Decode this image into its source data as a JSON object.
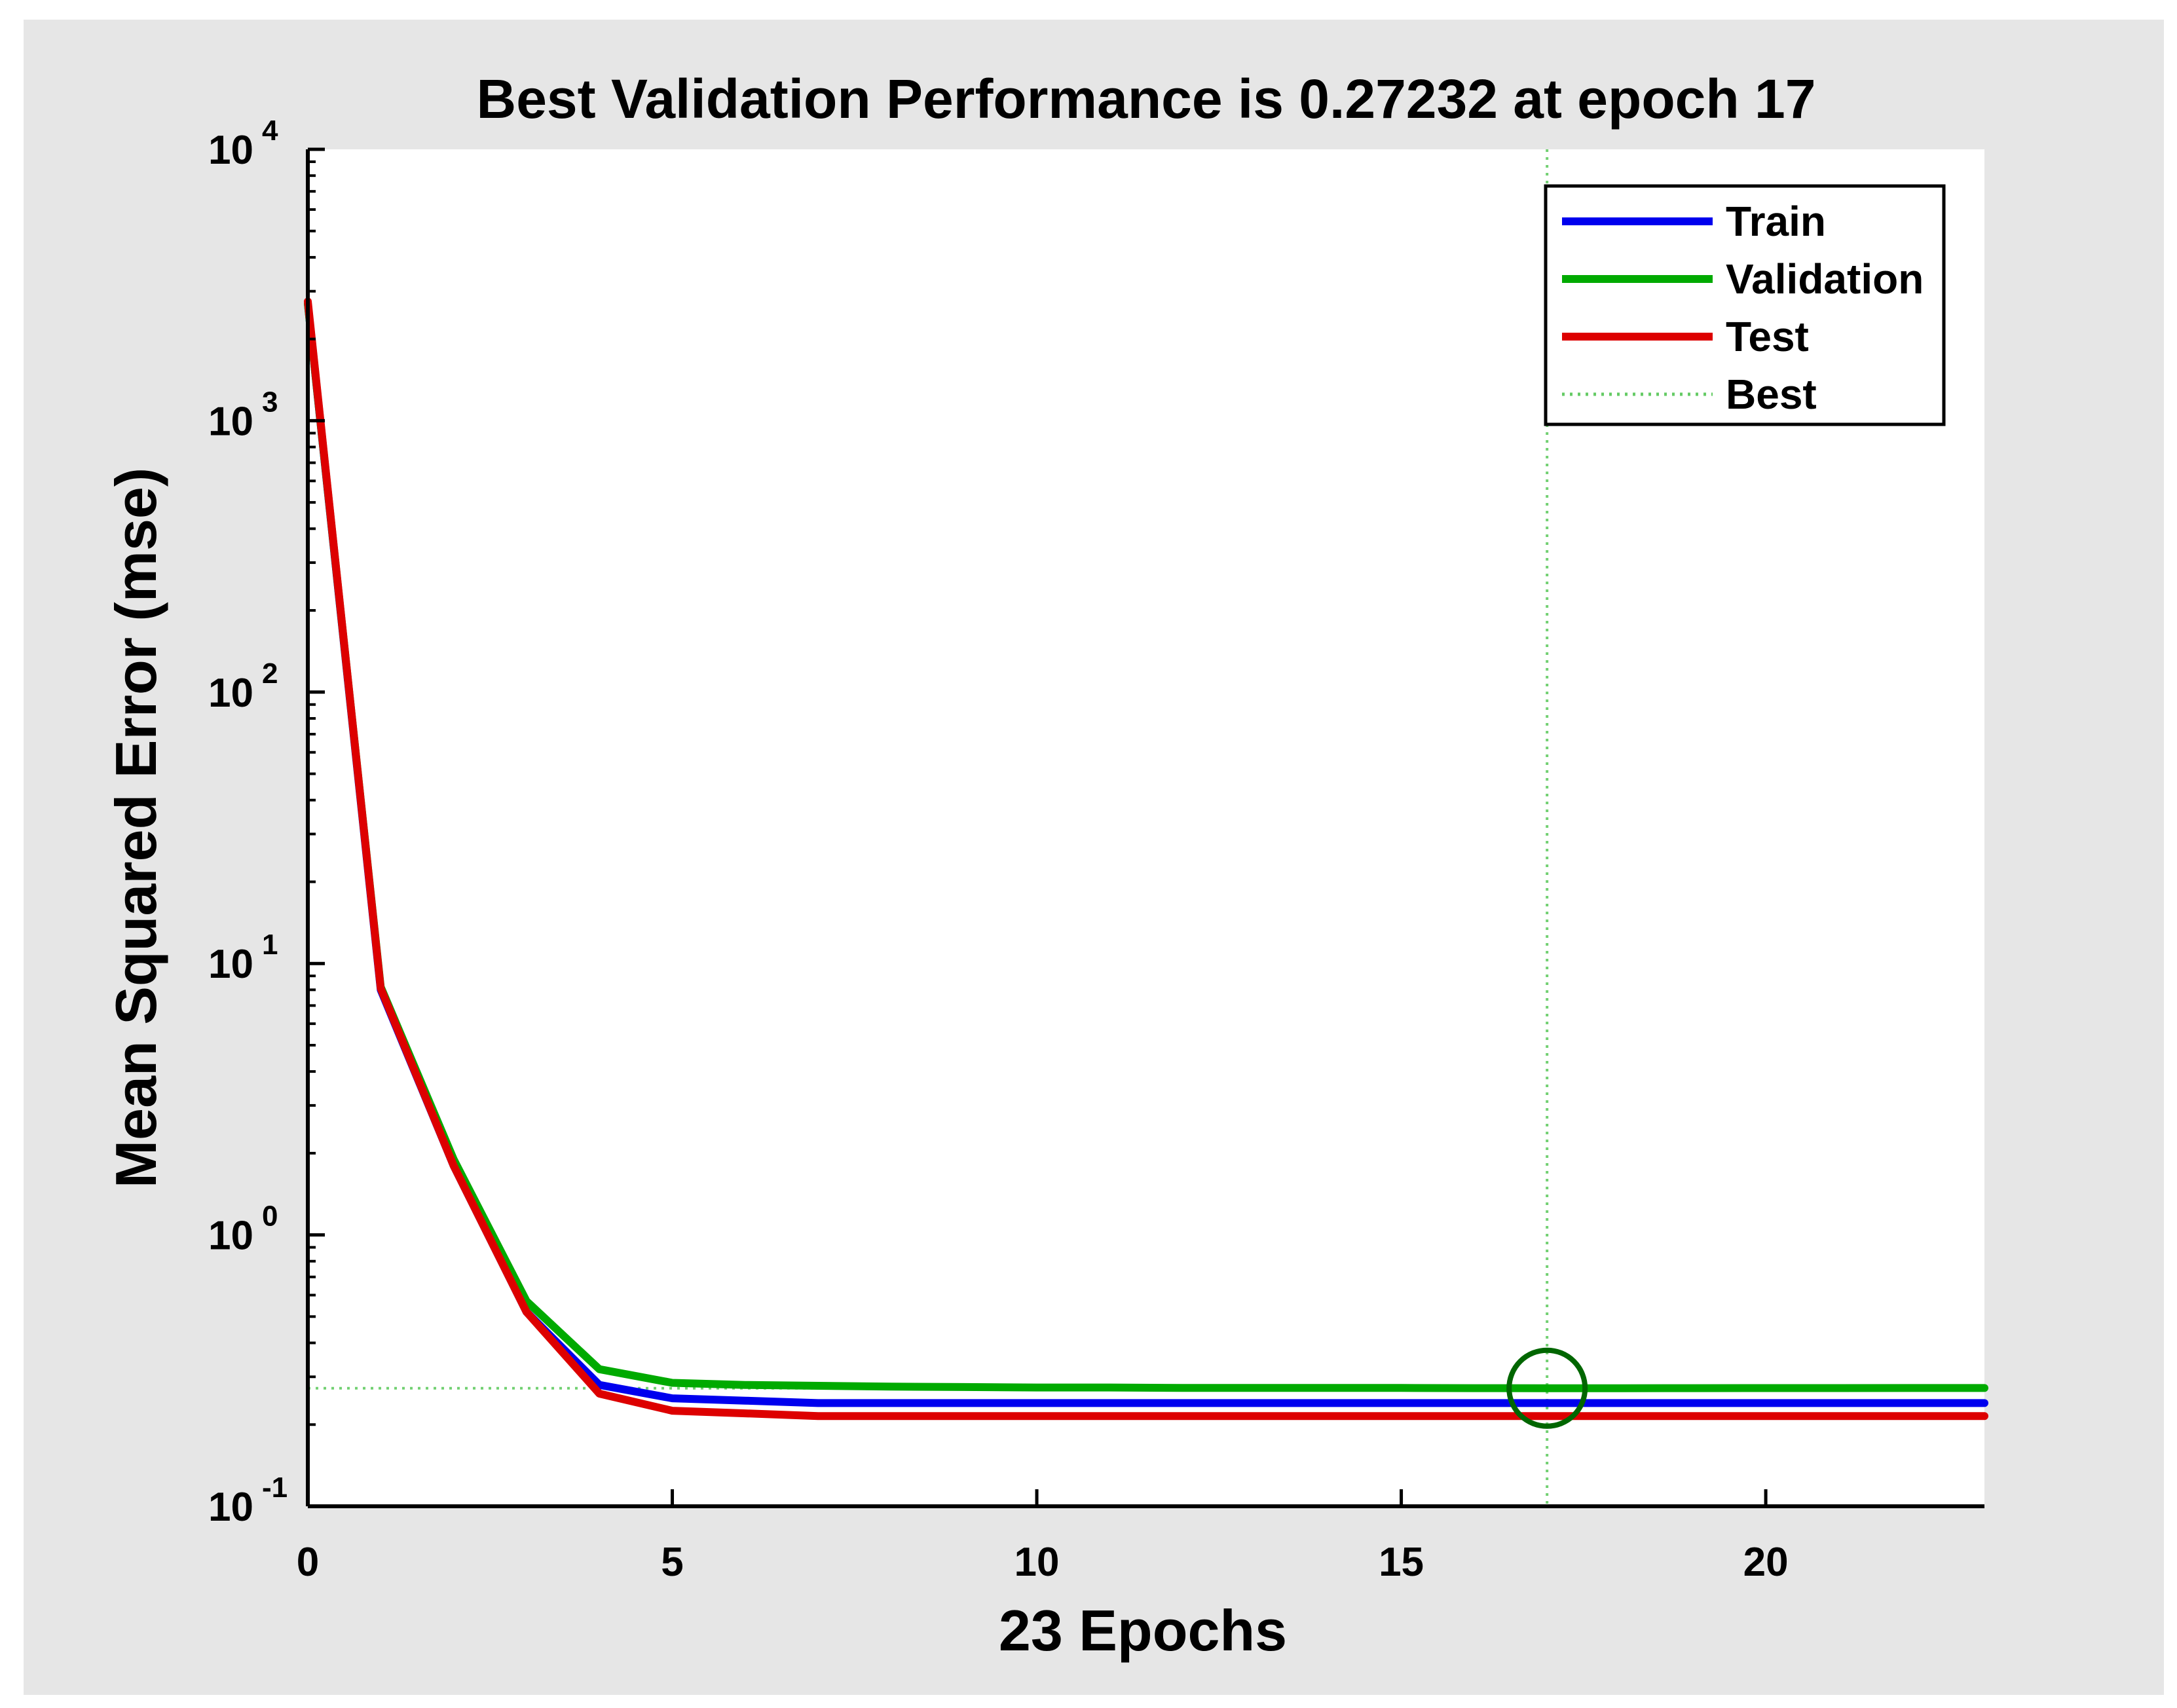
{
  "chart_data": {
    "type": "line",
    "title": "Best Validation Performance is 0.27232 at epoch 17",
    "xlabel": "23 Epochs",
    "ylabel": "Mean Squared Error (mse)",
    "xlim": [
      0,
      23
    ],
    "ylim": [
      0.1,
      10000
    ],
    "yscale": "log",
    "x_ticks": [
      "0",
      "5",
      "10",
      "15",
      "20"
    ],
    "y_ticks": [
      {
        "base": "10",
        "exp": "-1"
      },
      {
        "base": "10",
        "exp": "0"
      },
      {
        "base": "10",
        "exp": "1"
      },
      {
        "base": "10",
        "exp": "2"
      },
      {
        "base": "10",
        "exp": "3"
      },
      {
        "base": "10",
        "exp": "4"
      }
    ],
    "x": [
      0,
      1,
      2,
      3,
      4,
      5,
      6,
      7,
      8,
      9,
      10,
      11,
      12,
      13,
      14,
      15,
      16,
      17,
      18,
      19,
      20,
      21,
      22,
      23
    ],
    "series": [
      {
        "name": "Train",
        "color": "#0000ee",
        "values": [
          2700,
          8.0,
          1.8,
          0.52,
          0.28,
          0.25,
          0.245,
          0.24,
          0.24,
          0.24,
          0.24,
          0.24,
          0.24,
          0.24,
          0.24,
          0.24,
          0.24,
          0.24,
          0.24,
          0.24,
          0.24,
          0.24,
          0.24,
          0.24
        ]
      },
      {
        "name": "Validation",
        "color": "#00aa00",
        "values": [
          2700,
          8.2,
          1.9,
          0.57,
          0.32,
          0.285,
          0.28,
          0.278,
          0.276,
          0.275,
          0.274,
          0.274,
          0.273,
          0.273,
          0.273,
          0.273,
          0.2725,
          0.27232,
          0.2724,
          0.2725,
          0.2726,
          0.2727,
          0.2728,
          0.2728
        ]
      },
      {
        "name": "Test",
        "color": "#dd0000",
        "values": [
          2750,
          8.1,
          1.8,
          0.52,
          0.26,
          0.225,
          0.22,
          0.215,
          0.215,
          0.215,
          0.215,
          0.215,
          0.215,
          0.215,
          0.215,
          0.215,
          0.215,
          0.215,
          0.215,
          0.215,
          0.215,
          0.215,
          0.215,
          0.215
        ]
      }
    ],
    "best": {
      "epoch": 17,
      "value": 0.27232,
      "label": "Best",
      "color": "#00aa00"
    },
    "legend": [
      "Train",
      "Validation",
      "Test",
      "Best"
    ],
    "legend_position": "top-right"
  }
}
